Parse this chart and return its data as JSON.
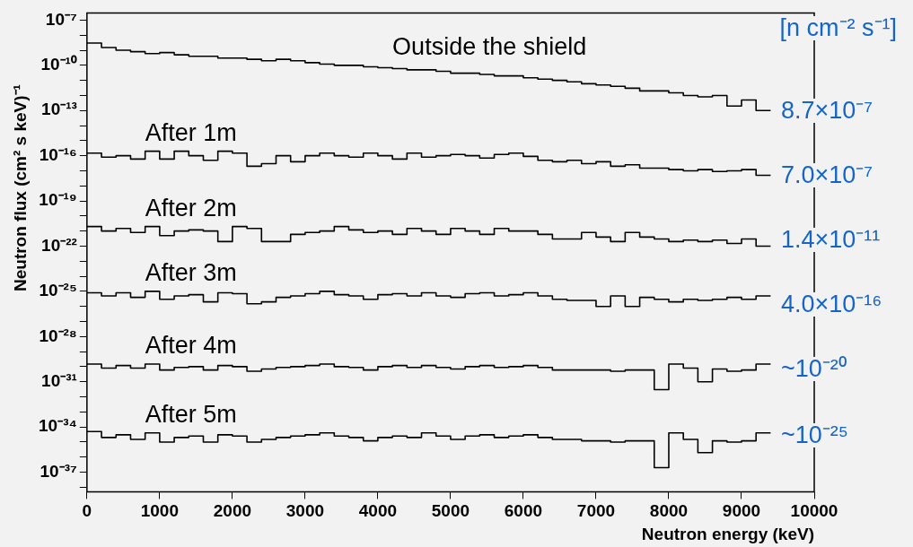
{
  "chart_data": {
    "type": "step",
    "xlabel": "Neutron energy (keV)",
    "ylabel": "Neutron flux (cm² s  keV)⁻¹",
    "annotations": [
      "[n cm⁻² s⁻¹]",
      "8.7×10⁻⁷",
      "7.0×10⁻⁷",
      "1.4×10⁻¹¹",
      "4.0×10⁻¹⁶",
      "~10⁻²⁰",
      "~10⁻²⁵"
    ],
    "x": [
      0,
      200,
      400,
      600,
      800,
      1000,
      1200,
      1400,
      1600,
      1800,
      2000,
      2200,
      2400,
      2600,
      2800,
      3000,
      3200,
      3400,
      3600,
      3800,
      4000,
      4200,
      4400,
      4600,
      4800,
      5000,
      5200,
      5400,
      5600,
      5800,
      6000,
      6200,
      6400,
      6600,
      6800,
      7000,
      7200,
      7400,
      7600,
      7800,
      8000,
      8200,
      8400,
      8600,
      8800,
      9000,
      9200,
      9400
    ],
    "series": [
      {
        "name": "Outside the shield",
        "color": "#000000",
        "values": [
          3e-09,
          1.5e-09,
          1e-09,
          8e-10,
          6e-10,
          7e-10,
          5e-10,
          4e-10,
          4e-10,
          3e-10,
          3e-10,
          2.5e-10,
          2e-10,
          2.5e-10,
          2e-10,
          1.5e-10,
          1.2e-10,
          1e-10,
          1e-10,
          8e-11,
          7e-11,
          6e-11,
          5e-11,
          5e-11,
          4e-11,
          3e-11,
          3e-11,
          2.5e-11,
          2e-11,
          2e-11,
          1.5e-11,
          1.2e-11,
          1e-11,
          8e-12,
          6e-12,
          5e-12,
          4e-12,
          3e-12,
          2e-12,
          2e-12,
          1.5e-12,
          1e-12,
          8e-13,
          1e-12,
          2e-13,
          5e-13,
          1e-13,
          1e-13
        ]
      },
      {
        "name": "After 1m",
        "color": "#000000",
        "values": [
          1.5e-16,
          8e-17,
          1e-16,
          6e-17,
          2e-16,
          6e-17,
          2e-16,
          1e-16,
          5e-17,
          2e-16,
          1.5e-16,
          2e-17,
          3e-17,
          1e-16,
          4e-17,
          1e-16,
          1.5e-16,
          1e-16,
          8e-17,
          1.5e-16,
          1e-16,
          6e-17,
          1.5e-16,
          8e-17,
          1e-16,
          1.2e-16,
          1e-16,
          7e-17,
          1.2e-16,
          1.5e-16,
          9e-17,
          5e-17,
          4e-17,
          5e-17,
          3e-17,
          4e-17,
          2e-17,
          2.5e-17,
          1.5e-17,
          1.5e-17,
          1.2e-17,
          1e-17,
          1.2e-17,
          9e-18,
          1e-17,
          1.2e-17,
          5e-18,
          5e-18
        ]
      },
      {
        "name": "After 2m",
        "color": "#000000",
        "values": [
          2e-21,
          1e-21,
          1.5e-21,
          8e-22,
          2e-21,
          5e-22,
          1e-21,
          1.2e-21,
          1e-21,
          2e-22,
          2e-21,
          1.5e-21,
          2e-22,
          2e-22,
          6e-22,
          8e-22,
          1e-21,
          2e-21,
          1.2e-21,
          8e-22,
          1e-21,
          6e-22,
          1.5e-21,
          1e-21,
          6e-22,
          1.5e-21,
          1e-21,
          6e-22,
          1.5e-21,
          1e-21,
          1e-21,
          6e-22,
          3e-22,
          3e-22,
          8e-22,
          4e-22,
          2e-22,
          8e-22,
          4e-22,
          3e-22,
          2e-22,
          2.5e-22,
          2e-22,
          2.5e-22,
          1.5e-22,
          3e-22,
          1e-22,
          1e-22
        ]
      },
      {
        "name": "After 3m",
        "color": "#000000",
        "values": [
          8e-26,
          5e-26,
          8e-26,
          4e-26,
          1e-25,
          3e-26,
          5e-26,
          6e-26,
          2e-26,
          8e-26,
          7e-26,
          1.5e-26,
          2e-26,
          4e-26,
          5e-26,
          7e-26,
          1e-25,
          6e-26,
          5e-26,
          3e-26,
          6e-26,
          7e-26,
          5e-26,
          8e-26,
          5e-26,
          4e-26,
          7e-26,
          8e-26,
          5e-26,
          6e-26,
          8e-26,
          5e-26,
          3e-26,
          2.5e-26,
          2.5e-26,
          1e-26,
          5e-26,
          1e-26,
          4e-26,
          3e-26,
          2e-26,
          3e-26,
          2.5e-26,
          3e-26,
          4e-26,
          3e-26,
          5e-26,
          5e-26
        ]
      },
      {
        "name": "After 4m",
        "color": "#000000",
        "values": [
          1.5e-30,
          8e-31,
          1.2e-30,
          8e-31,
          1.5e-30,
          6e-31,
          9e-31,
          1e-30,
          6e-31,
          1.2e-30,
          1e-30,
          5e-31,
          7e-31,
          9e-31,
          1e-30,
          1.2e-30,
          1.5e-30,
          1e-30,
          9e-31,
          6e-31,
          1e-30,
          1.2e-30,
          9e-31,
          1.2e-30,
          9e-31,
          7e-31,
          1e-30,
          1.2e-30,
          9e-31,
          1e-30,
          1.2e-30,
          9e-31,
          6e-31,
          6e-31,
          6e-31,
          6e-31,
          5e-31,
          6e-31,
          6e-31,
          3e-32,
          1.5e-30,
          8e-31,
          1e-31,
          7e-31,
          5e-31,
          6e-31,
          1.5e-30,
          1.5e-30
        ]
      },
      {
        "name": "After 5m",
        "color": "#000000",
        "values": [
          5e-35,
          2e-35,
          3e-35,
          1.5e-35,
          4e-35,
          1e-35,
          2e-35,
          2.5e-35,
          1e-35,
          3e-35,
          2.5e-35,
          1e-35,
          1.5e-35,
          2e-35,
          2.5e-35,
          3e-35,
          4e-35,
          2.5e-35,
          2e-35,
          1.2e-35,
          2e-35,
          2.5e-35,
          2e-35,
          4e-35,
          2.5e-35,
          1.5e-35,
          2.5e-35,
          3e-35,
          2e-35,
          2.5e-35,
          3e-35,
          2e-35,
          1.5e-35,
          1.5e-35,
          1.2e-35,
          1.2e-35,
          1e-35,
          1.2e-35,
          1.2e-35,
          2e-37,
          4e-35,
          1.5e-35,
          2e-36,
          1.2e-35,
          1e-35,
          1.2e-35,
          4e-35,
          4e-35
        ]
      }
    ],
    "xlim": [
      0,
      10000
    ],
    "xticks": [
      0,
      1000,
      2000,
      3000,
      4000,
      5000,
      6000,
      7000,
      8000,
      9000,
      10000
    ],
    "ylim": [
      5e-39,
      3e-07
    ],
    "yticks": [
      {
        "value": 1e-07,
        "label": "10⁻⁷"
      },
      {
        "value": 1e-08,
        "label": null
      },
      {
        "value": 1e-09,
        "label": null
      },
      {
        "value": 1e-10,
        "label": "10⁻¹⁰"
      },
      {
        "value": 1e-11,
        "label": null
      },
      {
        "value": 1e-12,
        "label": null
      },
      {
        "value": 1e-13,
        "label": "10⁻¹³"
      },
      {
        "value": 1e-14,
        "label": null
      },
      {
        "value": 1e-15,
        "label": null
      },
      {
        "value": 1e-16,
        "label": "10⁻¹⁶"
      },
      {
        "value": 1e-17,
        "label": null
      },
      {
        "value": 1e-18,
        "label": null
      },
      {
        "value": 1e-19,
        "label": "10⁻¹⁹"
      },
      {
        "value": 1e-20,
        "label": null
      },
      {
        "value": 1e-21,
        "label": null
      },
      {
        "value": 1e-22,
        "label": "10⁻²²"
      },
      {
        "value": 1e-23,
        "label": null
      },
      {
        "value": 1e-24,
        "label": null
      },
      {
        "value": 1e-25,
        "label": "10⁻²⁵"
      },
      {
        "value": 1e-26,
        "label": null
      },
      {
        "value": 1e-27,
        "label": null
      },
      {
        "value": 1e-28,
        "label": "10⁻²⁸"
      },
      {
        "value": 1e-29,
        "label": null
      },
      {
        "value": 1e-30,
        "label": null
      },
      {
        "value": 1e-31,
        "label": "10⁻³¹"
      },
      {
        "value": 1e-32,
        "label": null
      },
      {
        "value": 1e-33,
        "label": null
      },
      {
        "value": 1e-34,
        "label": "10⁻³⁴"
      },
      {
        "value": 1e-35,
        "label": null
      },
      {
        "value": 1e-36,
        "label": null
      },
      {
        "value": 1e-37,
        "label": "10⁻³⁷"
      },
      {
        "value": 1e-38,
        "label": null
      }
    ],
    "log": "y",
    "legend": false,
    "marker": "none",
    "line_style": "solid"
  }
}
